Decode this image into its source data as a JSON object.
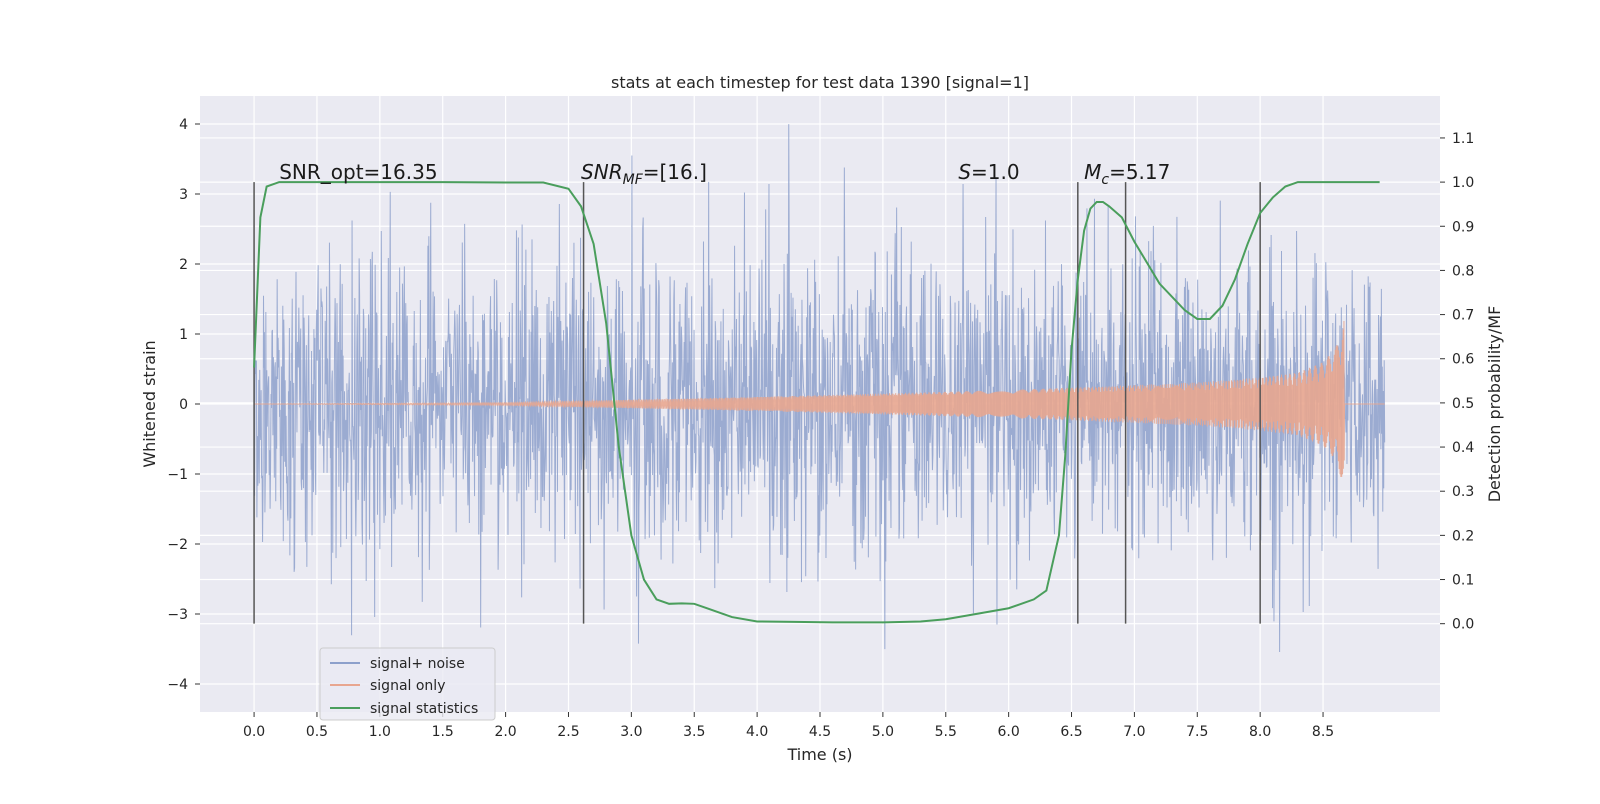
{
  "chart_data": {
    "type": "line",
    "title": "stats at each timestep for test data 1390 [signal=1]",
    "xlabel": "Time (s)",
    "ylabel_left": "Whitened strain",
    "ylabel_right": "Detection probability/MF",
    "xlim": [
      -0.43,
      9.43
    ],
    "ylim_left": [
      -4.4,
      4.4
    ],
    "ylim_right": [
      -0.2,
      1.195
    ],
    "xticks": [
      "0.0",
      "0.5",
      "1.0",
      "1.5",
      "2.0",
      "2.5",
      "3.0",
      "3.5",
      "4.0",
      "4.5",
      "5.0",
      "5.5",
      "6.0",
      "6.5",
      "7.0",
      "7.5",
      "8.0",
      "8.5"
    ],
    "yticks_left": [
      "−4",
      "−3",
      "−2",
      "−1",
      "0",
      "1",
      "2",
      "3",
      "4"
    ],
    "yticks_right": [
      "0.0",
      "0.1",
      "0.2",
      "0.3",
      "0.4",
      "0.5",
      "0.6",
      "0.7",
      "0.8",
      "0.9",
      "1.0",
      "1.1"
    ],
    "grid": true,
    "legend_position": "bottom-left",
    "series": [
      {
        "name": "signal+ noise",
        "color": "#8da0cb",
        "axis": "left",
        "description_values": "noisy whitened strain, amplitude envelope about ±2.5, peaks near ±4, from t=0.0 to t=8.99"
      },
      {
        "name": "signal only",
        "color": "#e8a68f",
        "axis": "left",
        "envelope_t": [
          0.0,
          2.0,
          3.0,
          4.0,
          5.0,
          6.0,
          7.0,
          7.5,
          8.0,
          8.3,
          8.5,
          8.6,
          8.65,
          8.67
        ],
        "envelope_a": [
          0.0,
          0.02,
          0.06,
          0.1,
          0.15,
          0.2,
          0.27,
          0.31,
          0.38,
          0.45,
          0.6,
          0.8,
          1.1,
          1.25
        ]
      },
      {
        "name": "signal statistics",
        "color": "#4a9e5c",
        "axis": "right",
        "x": [
          0.0,
          0.05,
          0.1,
          0.15,
          0.2,
          0.3,
          0.5,
          1.0,
          1.5,
          2.0,
          2.3,
          2.5,
          2.6,
          2.7,
          2.8,
          2.9,
          3.0,
          3.1,
          3.2,
          3.3,
          3.4,
          3.5,
          3.6,
          3.8,
          4.0,
          4.3,
          4.6,
          5.0,
          5.3,
          5.5,
          5.7,
          6.0,
          6.2,
          6.3,
          6.4,
          6.45,
          6.5,
          6.55,
          6.6,
          6.65,
          6.7,
          6.75,
          6.8,
          6.9,
          7.0,
          7.2,
          7.4,
          7.5,
          7.6,
          7.7,
          7.8,
          7.9,
          8.0,
          8.1,
          8.2,
          8.3,
          8.5,
          8.7,
          8.95
        ],
        "values": [
          0.58,
          0.92,
          0.99,
          0.995,
          1.0,
          1.0,
          1.0,
          1.0,
          1.0,
          0.999,
          0.999,
          0.985,
          0.945,
          0.86,
          0.68,
          0.4,
          0.2,
          0.1,
          0.055,
          0.045,
          0.046,
          0.045,
          0.035,
          0.015,
          0.005,
          0.004,
          0.003,
          0.003,
          0.005,
          0.01,
          0.02,
          0.035,
          0.055,
          0.075,
          0.2,
          0.38,
          0.62,
          0.78,
          0.89,
          0.94,
          0.955,
          0.955,
          0.945,
          0.92,
          0.865,
          0.77,
          0.71,
          0.69,
          0.69,
          0.72,
          0.78,
          0.86,
          0.93,
          0.965,
          0.99,
          1.0,
          1.0,
          1.0,
          1.0
        ]
      }
    ],
    "vlines": [
      0.0,
      2.62,
      6.55,
      6.93,
      8.0
    ],
    "annotations": [
      {
        "text": "SNR_opt=16.35",
        "x": 0.2
      },
      {
        "text": "SNR",
        "sub": "MF",
        "tail": "=[16.]",
        "italic_head": true,
        "x": 2.6
      },
      {
        "text": "S",
        "tail": "=1.0",
        "italic_head": true,
        "x": 5.6
      },
      {
        "text": "M",
        "sub": "c",
        "tail": "=5.17",
        "italic_head": true,
        "x": 6.6
      }
    ]
  }
}
